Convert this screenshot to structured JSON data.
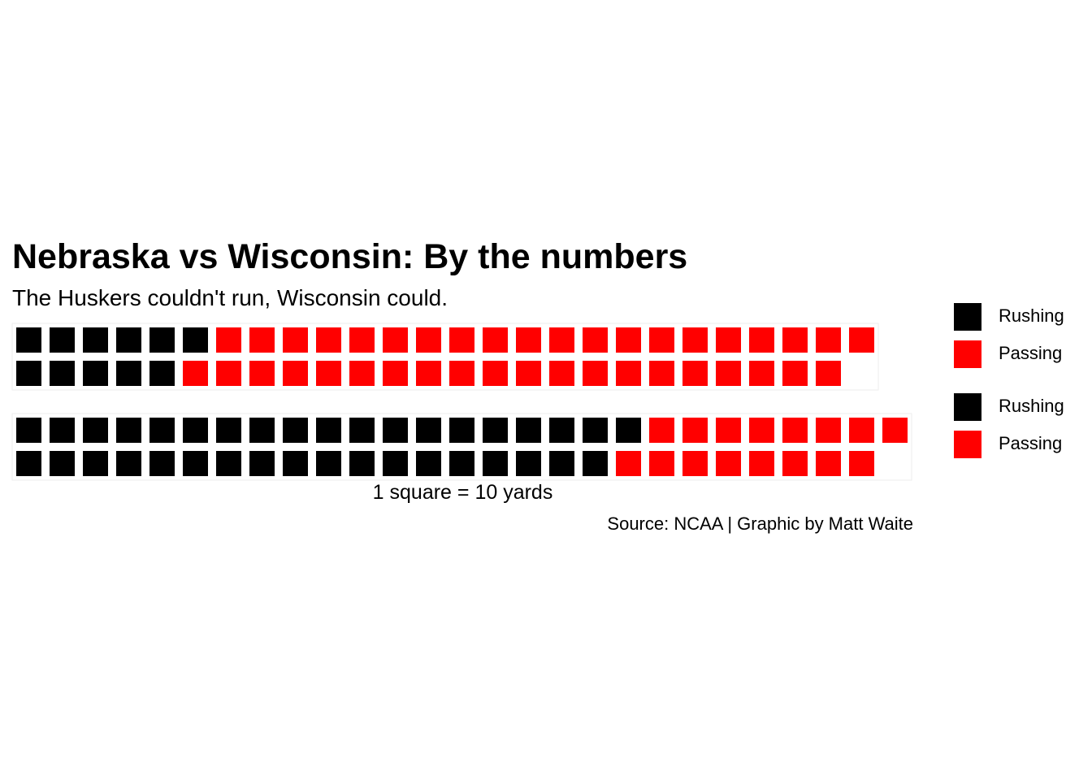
{
  "chart_data": {
    "type": "waffle",
    "title": "Nebraska vs Wisconsin: By the numbers",
    "subtitle": "The Huskers couldn't run, Wisconsin could.",
    "xlabel": "1 square = 10 yards",
    "caption": "Source: NCAA | Graphic by Matt Waite",
    "unit_value": 10,
    "unit_label": "yards",
    "colors": {
      "Rushing": "#000000",
      "Passing": "#ff0000"
    },
    "panels": [
      {
        "rows": 2,
        "values": [
          {
            "name": "Rushing",
            "squares": 11
          },
          {
            "name": "Passing",
            "squares": 40
          }
        ]
      },
      {
        "rows": 2,
        "values": [
          {
            "name": "Rushing",
            "squares": 37
          },
          {
            "name": "Passing",
            "squares": 16
          }
        ]
      }
    ],
    "legends": [
      {
        "entries": [
          "Rushing",
          "Passing"
        ]
      },
      {
        "entries": [
          "Rushing",
          "Passing"
        ]
      }
    ]
  }
}
